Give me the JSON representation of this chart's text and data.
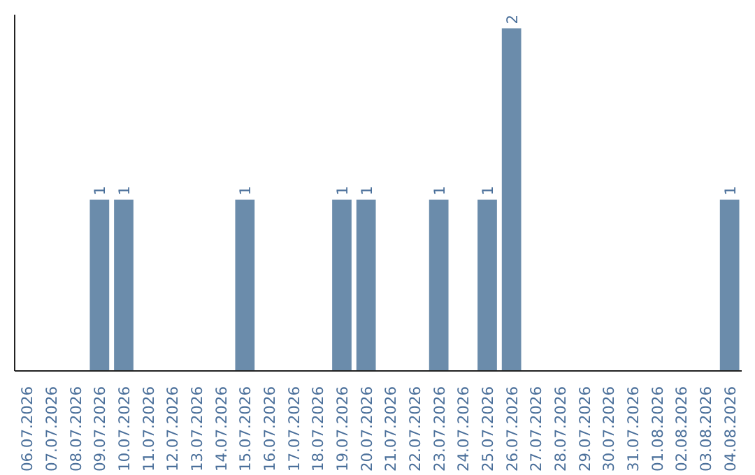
{
  "chart_data": {
    "type": "bar",
    "categories": [
      "06.07.2026",
      "07.07.2026",
      "08.07.2026",
      "09.07.2026",
      "10.07.2026",
      "11.07.2026",
      "12.07.2026",
      "13.07.2026",
      "14.07.2026",
      "15.07.2026",
      "16.07.2026",
      "17.07.2026",
      "18.07.2026",
      "19.07.2026",
      "20.07.2026",
      "21.07.2026",
      "22.07.2026",
      "23.07.2026",
      "24.07.2026",
      "25.07.2026",
      "26.07.2026",
      "27.07.2026",
      "28.07.2026",
      "29.07.2026",
      "30.07.2026",
      "31.07.2026",
      "01.08.2026",
      "02.08.2026",
      "03.08.2026",
      "04.08.2026"
    ],
    "values": [
      0,
      0,
      0,
      1,
      1,
      0,
      0,
      0,
      0,
      1,
      0,
      0,
      0,
      1,
      1,
      0,
      0,
      1,
      0,
      1,
      2,
      0,
      0,
      0,
      0,
      0,
      0,
      0,
      0,
      1
    ],
    "value_labels": [
      null,
      null,
      null,
      "1",
      "1",
      null,
      null,
      null,
      null,
      "1",
      null,
      null,
      null,
      "1",
      "1",
      null,
      null,
      "1",
      null,
      "1",
      "2",
      null,
      null,
      null,
      null,
      null,
      null,
      null,
      null,
      "1"
    ],
    "color": "#6b8cab",
    "ylim": [
      0,
      2.08
    ],
    "tick_labels": "x",
    "grid": false
  }
}
